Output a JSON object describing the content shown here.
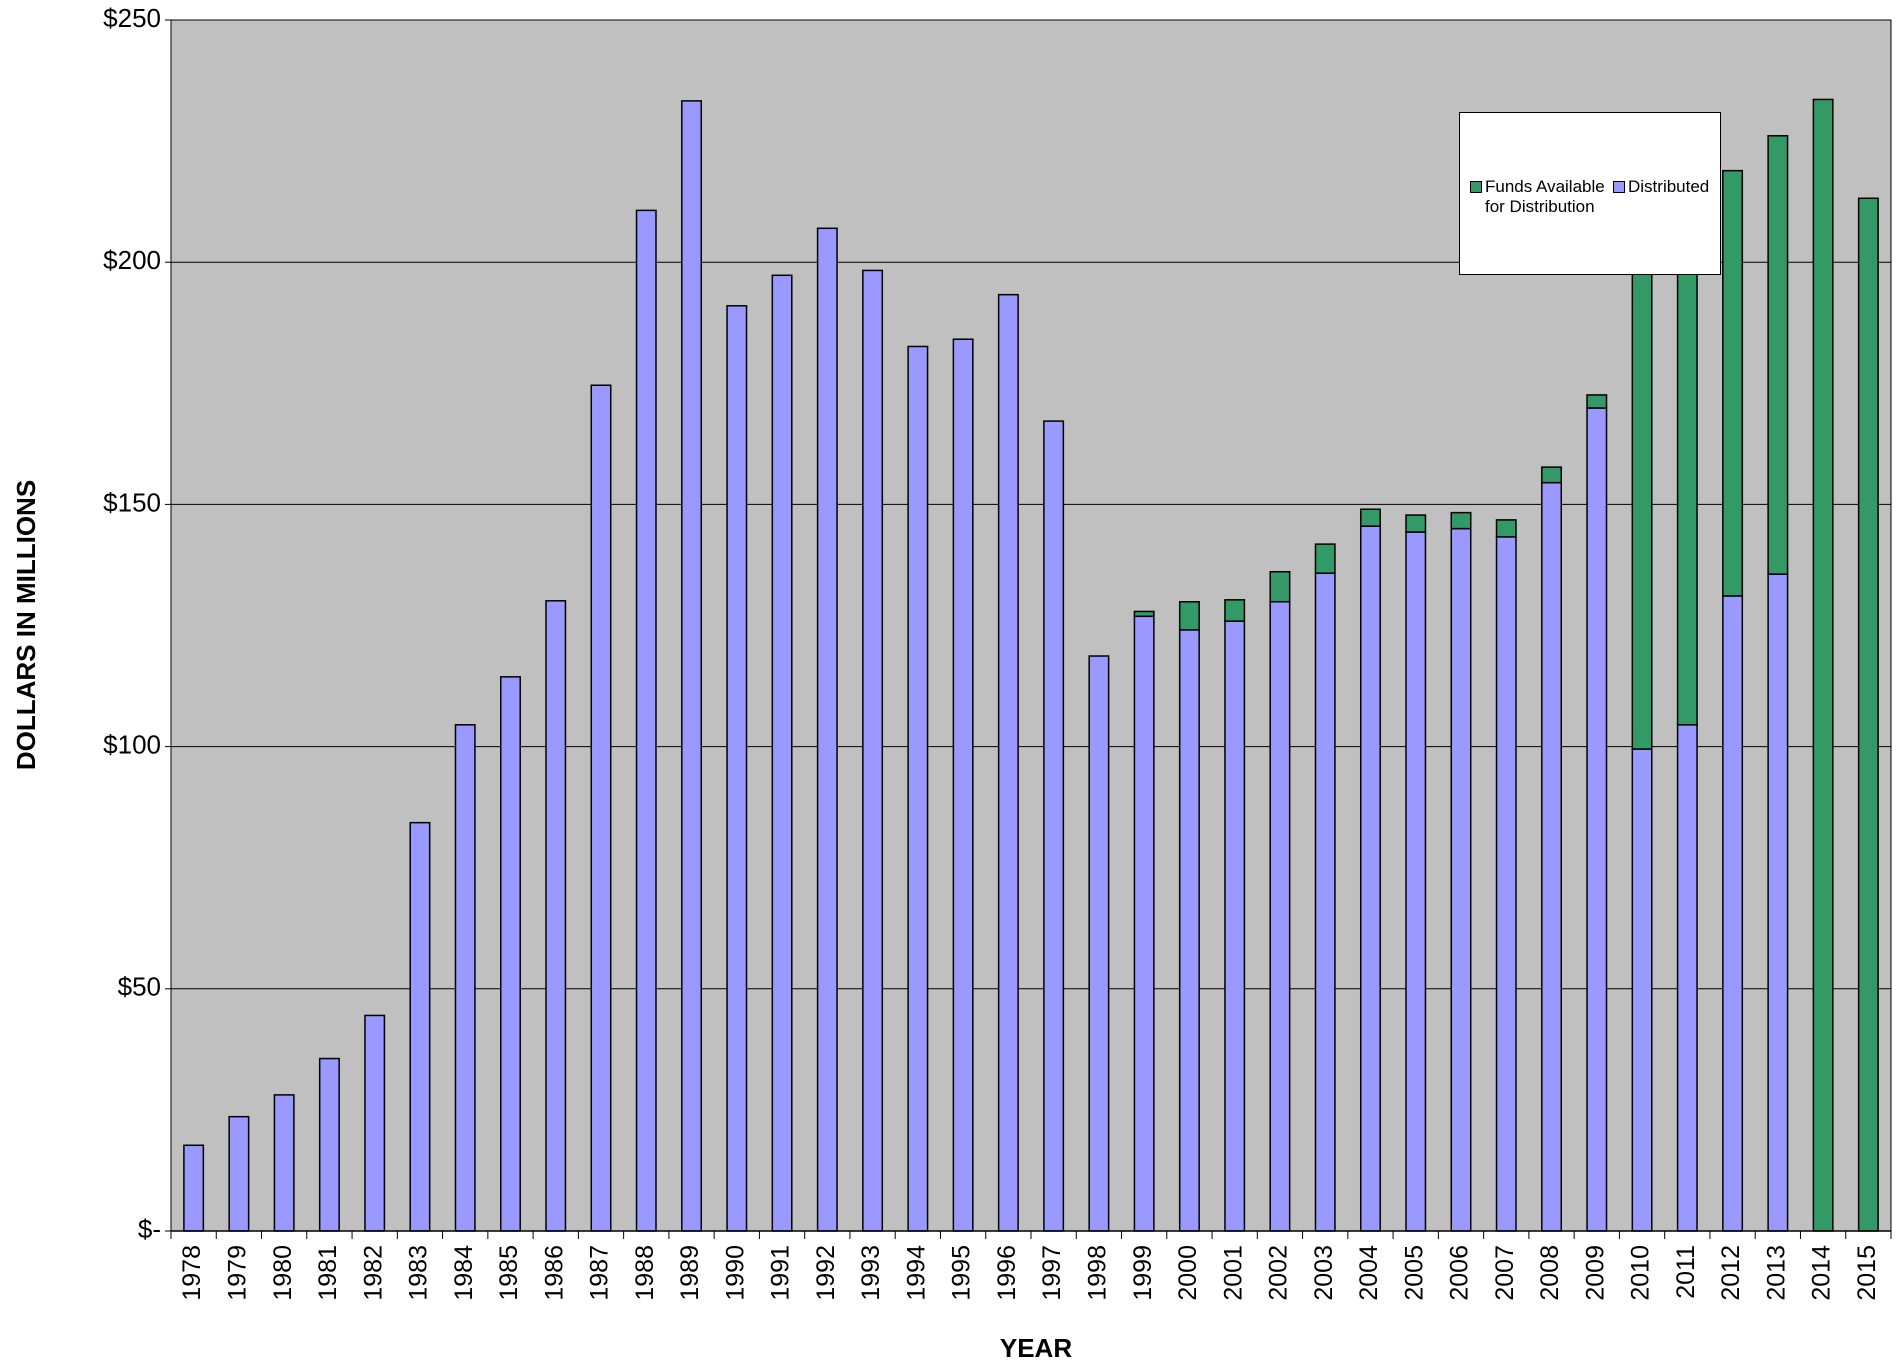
{
  "chart_data": {
    "type": "stacked-bar",
    "x_label": "YEAR",
    "y_label": "DOLLARS IN MILLIONS",
    "categories": [
      "1978",
      "1979",
      "1980",
      "1981",
      "1982",
      "1983",
      "1984",
      "1985",
      "1986",
      "1987",
      "1988",
      "1989",
      "1990",
      "1991",
      "1992",
      "1993",
      "1994",
      "1995",
      "1996",
      "1997",
      "1998",
      "1999",
      "2000",
      "2001",
      "2002",
      "2003",
      "2004",
      "2005",
      "2006",
      "2007",
      "2008",
      "2009",
      "2010",
      "2011",
      "2012",
      "2013",
      "2014",
      "2015"
    ],
    "series": [
      {
        "name": "Distributed",
        "color": "#9999ff",
        "values": [
          17.7,
          23.6,
          28.1,
          35.6,
          44.5,
          84.3,
          104.5,
          114.4,
          130.1,
          174.6,
          210.7,
          233.3,
          191,
          197.3,
          207,
          198.3,
          182.6,
          184.1,
          193.3,
          167.2,
          118.7,
          126.9,
          124.1,
          125.9,
          129.9,
          135.8,
          145.5,
          144.3,
          145,
          143.3,
          154.5,
          169.9,
          99.5,
          104.5,
          131.1,
          135.6,
          0,
          0
        ]
      },
      {
        "name": "Funds Available for Distribution",
        "color": "#339966",
        "values": [
          0,
          0,
          0,
          0,
          0,
          0,
          0,
          0,
          0,
          0,
          0,
          0,
          0,
          0,
          0,
          0,
          0,
          0,
          0,
          0,
          0,
          1.0,
          5.8,
          4.4,
          6.2,
          6.0,
          3.5,
          3.5,
          3.3,
          3.5,
          3.2,
          2.7,
          110.5,
          107.5,
          87.8,
          90.5,
          233.6,
          213.2
        ]
      }
    ],
    "ylim": [
      0,
      250
    ],
    "yticks": [
      {
        "value": 0,
        "label": "$-"
      },
      {
        "value": 50,
        "label": "$50"
      },
      {
        "value": 100,
        "label": "$100"
      },
      {
        "value": 150,
        "label": "$150"
      },
      {
        "value": 200,
        "label": "$200"
      },
      {
        "value": 250,
        "label": "$250"
      }
    ],
    "grid": true,
    "background": "#c0c0c0"
  }
}
